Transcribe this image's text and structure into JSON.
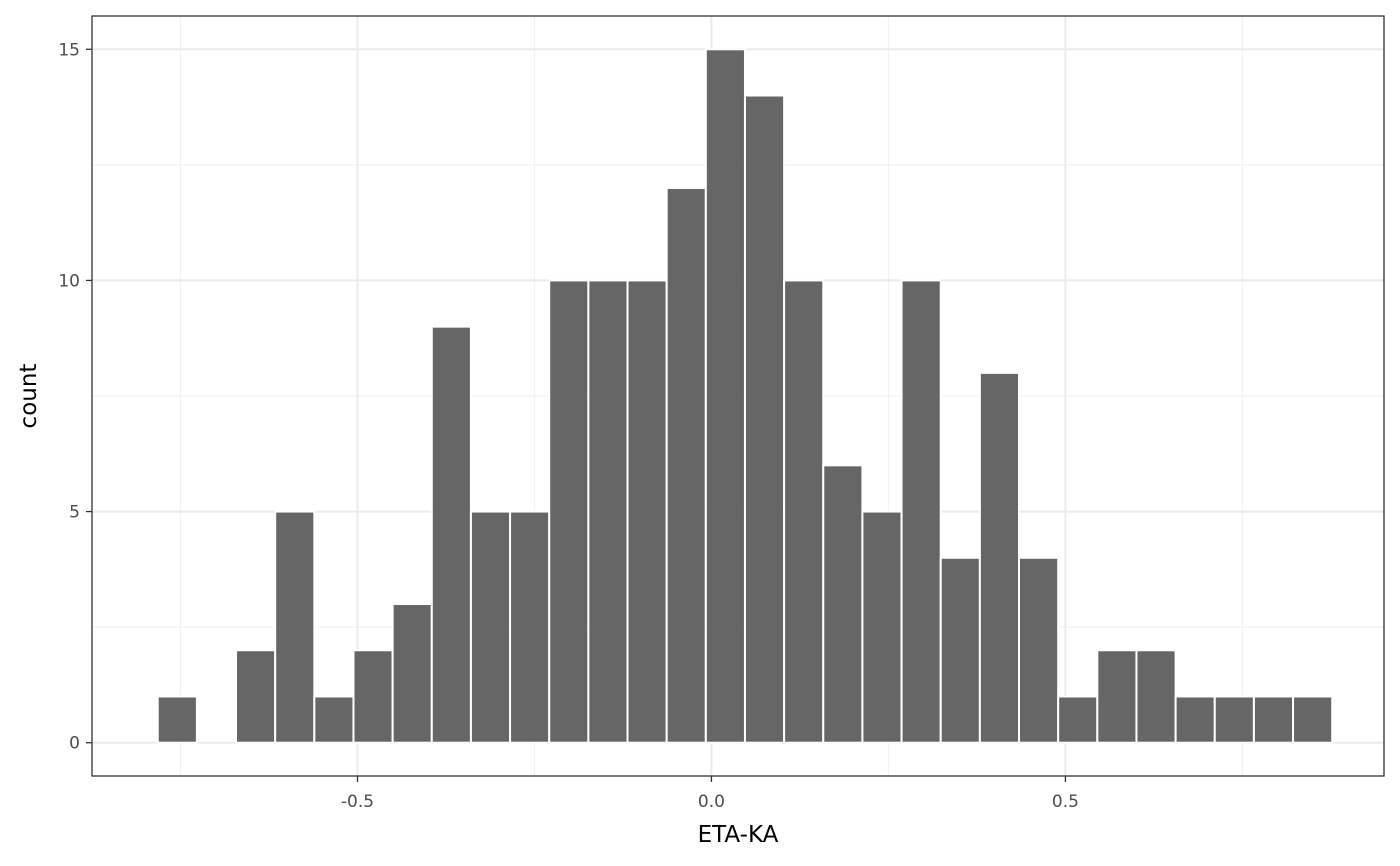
{
  "chart_data": {
    "type": "bar",
    "title": "",
    "xlabel": "ETA-KA",
    "ylabel": "count",
    "xlim": [
      -0.875,
      0.95
    ],
    "ylim": [
      -0.72,
      15.72
    ],
    "x_ticks": [
      -0.5,
      0.0,
      0.5
    ],
    "x_tick_labels": [
      "-0.5",
      "0.0",
      "0.5"
    ],
    "y_ticks": [
      0,
      5,
      10,
      15
    ],
    "y_tick_labels": [
      "0",
      "5",
      "10",
      "15"
    ],
    "grid": true,
    "bin_width": 0.0553,
    "bins": [
      {
        "x": -0.7545,
        "count": 1
      },
      {
        "x": -0.6992,
        "count": 0
      },
      {
        "x": -0.6439,
        "count": 2
      },
      {
        "x": -0.5886,
        "count": 5
      },
      {
        "x": -0.5333,
        "count": 1
      },
      {
        "x": -0.478,
        "count": 2
      },
      {
        "x": -0.4227,
        "count": 3
      },
      {
        "x": -0.3674,
        "count": 9
      },
      {
        "x": -0.3121,
        "count": 5
      },
      {
        "x": -0.2568,
        "count": 5
      },
      {
        "x": -0.2015,
        "count": 10
      },
      {
        "x": -0.1462,
        "count": 10
      },
      {
        "x": -0.0909,
        "count": 10
      },
      {
        "x": -0.0356,
        "count": 12
      },
      {
        "x": 0.0197,
        "count": 15
      },
      {
        "x": 0.075,
        "count": 14
      },
      {
        "x": 0.1303,
        "count": 10
      },
      {
        "x": 0.1856,
        "count": 6
      },
      {
        "x": 0.2409,
        "count": 5
      },
      {
        "x": 0.2962,
        "count": 10
      },
      {
        "x": 0.3515,
        "count": 4
      },
      {
        "x": 0.4068,
        "count": 8
      },
      {
        "x": 0.4621,
        "count": 4
      },
      {
        "x": 0.5174,
        "count": 1
      },
      {
        "x": 0.5727,
        "count": 2
      },
      {
        "x": 0.628,
        "count": 2
      },
      {
        "x": 0.6833,
        "count": 1
      },
      {
        "x": 0.7386,
        "count": 1
      },
      {
        "x": 0.7939,
        "count": 1
      },
      {
        "x": 0.8492,
        "count": 1
      }
    ]
  }
}
